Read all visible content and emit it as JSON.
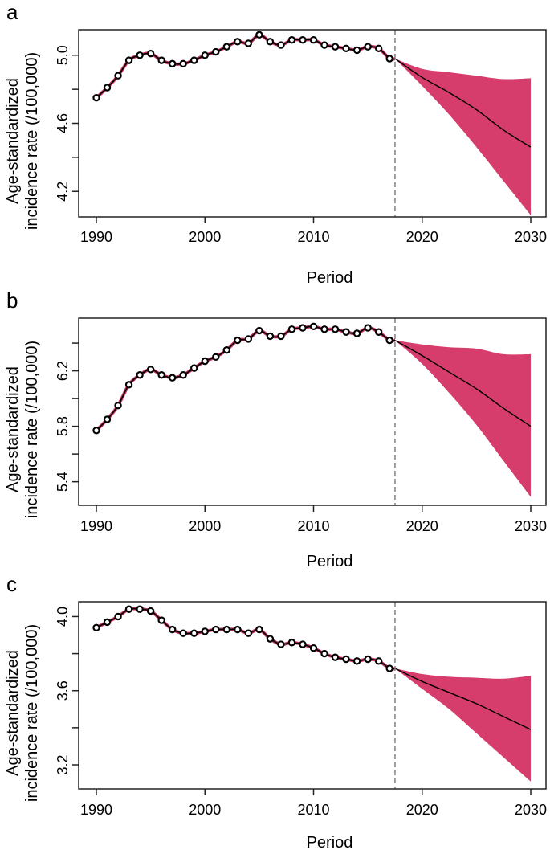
{
  "figure": {
    "band_color": "#D63C6C",
    "fit_line_color": "#000000",
    "smooth_line_color": "#C8355F",
    "divider_color": "#808080"
  },
  "chart_data": [
    {
      "type": "line",
      "panel_label": "a",
      "xlabel": "Period",
      "ylabel": [
        "Age-standardized",
        "incidence rate (/100,000)"
      ],
      "xlim": [
        1990,
        2030
      ],
      "x_ticks": [
        1990,
        2000,
        2010,
        2020,
        2030
      ],
      "x_tick_labels": [
        "1990",
        "2000",
        "2010",
        "2020",
        "2030"
      ],
      "ylim": [
        4.05,
        5.15
      ],
      "y_ticks": [
        4.2,
        4.4,
        4.6,
        4.8,
        5.0
      ],
      "y_tick_labels": [
        "4.2",
        "",
        "4.6",
        "",
        "5.0"
      ],
      "forecast_start": 2017.5,
      "observed": {
        "x": [
          1990,
          1991,
          1992,
          1993,
          1994,
          1995,
          1996,
          1997,
          1998,
          1999,
          2000,
          2001,
          2002,
          2003,
          2004,
          2005,
          2006,
          2007,
          2008,
          2009,
          2010,
          2011,
          2012,
          2013,
          2014,
          2015,
          2016,
          2017
        ],
        "y": [
          4.75,
          4.81,
          4.88,
          4.97,
          5.0,
          5.01,
          4.97,
          4.95,
          4.95,
          4.97,
          5.0,
          5.02,
          5.05,
          5.08,
          5.07,
          5.12,
          5.08,
          5.06,
          5.09,
          5.09,
          5.09,
          5.06,
          5.05,
          5.04,
          5.03,
          5.05,
          5.04,
          4.98
        ]
      },
      "forecast": {
        "x": [
          2017.5,
          2020,
          2022.5,
          2025,
          2027.5,
          2030
        ],
        "mean": [
          4.98,
          4.87,
          4.78,
          4.68,
          4.56,
          4.46
        ],
        "upper": [
          4.98,
          4.92,
          4.9,
          4.88,
          4.86,
          4.865
        ],
        "lower": [
          4.98,
          4.82,
          4.65,
          4.46,
          4.26,
          4.06
        ]
      }
    },
    {
      "type": "line",
      "panel_label": "b",
      "xlabel": "Period",
      "ylabel": [
        "Age-standardized",
        "incidence rate (/100,000)"
      ],
      "xlim": [
        1990,
        2030
      ],
      "x_ticks": [
        1990,
        2000,
        2010,
        2020,
        2030
      ],
      "x_tick_labels": [
        "1990",
        "2000",
        "2010",
        "2020",
        "2030"
      ],
      "ylim": [
        5.23,
        6.58
      ],
      "y_ticks": [
        5.4,
        5.6,
        5.8,
        6.0,
        6.2,
        6.4
      ],
      "y_tick_labels": [
        "5.4",
        "",
        "5.8",
        "",
        "6.2",
        ""
      ],
      "forecast_start": 2017.5,
      "observed": {
        "x": [
          1990,
          1991,
          1992,
          1993,
          1994,
          1995,
          1996,
          1997,
          1998,
          1999,
          2000,
          2001,
          2002,
          2003,
          2004,
          2005,
          2006,
          2007,
          2008,
          2009,
          2010,
          2011,
          2012,
          2013,
          2014,
          2015,
          2016,
          2017
        ],
        "y": [
          5.77,
          5.85,
          5.95,
          6.1,
          6.17,
          6.21,
          6.17,
          6.15,
          6.17,
          6.22,
          6.27,
          6.3,
          6.35,
          6.42,
          6.43,
          6.49,
          6.45,
          6.45,
          6.5,
          6.51,
          6.52,
          6.5,
          6.5,
          6.48,
          6.47,
          6.51,
          6.48,
          6.42
        ]
      },
      "forecast": {
        "x": [
          2017.5,
          2020,
          2022.5,
          2025,
          2027.5,
          2030
        ],
        "mean": [
          6.42,
          6.31,
          6.19,
          6.07,
          5.93,
          5.8
        ],
        "upper": [
          6.42,
          6.39,
          6.37,
          6.36,
          6.32,
          6.32
        ],
        "lower": [
          6.42,
          6.25,
          6.04,
          5.81,
          5.55,
          5.29
        ]
      }
    },
    {
      "type": "line",
      "panel_label": "c",
      "xlabel": "Period",
      "ylabel": [
        "Age-standardized",
        "incidence rate (/100,000)"
      ],
      "xlim": [
        1990,
        2030
      ],
      "x_ticks": [
        1990,
        2000,
        2010,
        2020,
        2030
      ],
      "x_tick_labels": [
        "1990",
        "2000",
        "2010",
        "2020",
        "2030"
      ],
      "ylim": [
        3.07,
        4.08
      ],
      "y_ticks": [
        3.2,
        3.4,
        3.6,
        3.8,
        4.0
      ],
      "y_tick_labels": [
        "3.2",
        "",
        "3.6",
        "",
        "4.0"
      ],
      "forecast_start": 2017.5,
      "observed": {
        "x": [
          1990,
          1991,
          1992,
          1993,
          1994,
          1995,
          1996,
          1997,
          1998,
          1999,
          2000,
          2001,
          2002,
          2003,
          2004,
          2005,
          2006,
          2007,
          2008,
          2009,
          2010,
          2011,
          2012,
          2013,
          2014,
          2015,
          2016,
          2017
        ],
        "y": [
          3.94,
          3.97,
          4.0,
          4.04,
          4.04,
          4.03,
          3.98,
          3.93,
          3.91,
          3.91,
          3.92,
          3.93,
          3.93,
          3.93,
          3.91,
          3.93,
          3.88,
          3.85,
          3.86,
          3.85,
          3.83,
          3.8,
          3.78,
          3.77,
          3.76,
          3.77,
          3.76,
          3.72
        ]
      },
      "forecast": {
        "x": [
          2017.5,
          2020,
          2022.5,
          2025,
          2027.5,
          2030
        ],
        "mean": [
          3.72,
          3.65,
          3.59,
          3.53,
          3.46,
          3.39
        ],
        "upper": [
          3.72,
          3.69,
          3.675,
          3.67,
          3.665,
          3.68
        ],
        "lower": [
          3.72,
          3.61,
          3.5,
          3.37,
          3.24,
          3.11
        ]
      }
    }
  ]
}
